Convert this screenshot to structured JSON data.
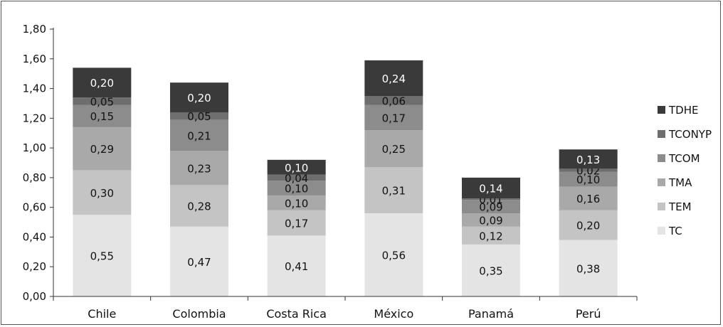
{
  "chart_data": {
    "type": "bar",
    "stacked": true,
    "categories": [
      "Chile",
      "Colombia",
      "Costa Rica",
      "México",
      "Panamá",
      "Perú"
    ],
    "series": [
      {
        "name": "TC",
        "color": "#e4e4e4",
        "label_color": "#111111",
        "values": [
          0.55,
          0.47,
          0.41,
          0.56,
          0.35,
          0.38
        ],
        "labels": [
          "0,55",
          "0,47",
          "0,41",
          "0,56",
          "0,35",
          "0,38"
        ]
      },
      {
        "name": "TEM",
        "color": "#c4c4c4",
        "label_color": "#111111",
        "values": [
          0.3,
          0.28,
          0.17,
          0.31,
          0.12,
          0.2
        ],
        "labels": [
          "0,30",
          "0,28",
          "0,17",
          "0,31",
          "0,12",
          "0,20"
        ]
      },
      {
        "name": "TMA",
        "color": "#a9a9a9",
        "label_color": "#111111",
        "values": [
          0.29,
          0.23,
          0.1,
          0.25,
          0.09,
          0.16
        ],
        "labels": [
          "0,29",
          "0,23",
          "0,10",
          "0,25",
          "0,09",
          "0,16"
        ]
      },
      {
        "name": "TCOM",
        "color": "#8c8c8c",
        "label_color": "#111111",
        "values": [
          0.15,
          0.21,
          0.1,
          0.17,
          0.09,
          0.1
        ],
        "labels": [
          "0,15",
          "0,21",
          "0,10",
          "0,17",
          "0,09",
          "0,10"
        ]
      },
      {
        "name": "TCONYP",
        "color": "#6e6e6e",
        "label_color": "#111111",
        "values": [
          0.05,
          0.05,
          0.04,
          0.06,
          0.01,
          0.02
        ],
        "labels": [
          "0,05",
          "0,05",
          "0,04",
          "0,06",
          "0,01",
          "0,02"
        ]
      },
      {
        "name": "TDHE",
        "color": "#3a3a3a",
        "label_color": "#ffffff",
        "values": [
          0.2,
          0.2,
          0.1,
          0.24,
          0.14,
          0.13
        ],
        "labels": [
          "0,20",
          "0,20",
          "0,10",
          "0,24",
          "0,14",
          "0,13"
        ]
      }
    ],
    "legend_order": [
      "TDHE",
      "TCONYP",
      "TCOM",
      "TMA",
      "TEM",
      "TC"
    ],
    "yticks": [
      0,
      0.2,
      0.4,
      0.6,
      0.8,
      1.0,
      1.2,
      1.4,
      1.6,
      1.8
    ],
    "ytick_labels": [
      "0,00",
      "0,20",
      "0,40",
      "0,60",
      "0,80",
      "1,00",
      "1,20",
      "1,40",
      "1,60",
      "1,80"
    ],
    "ylim": [
      0,
      1.8
    ],
    "grid": false,
    "legend_position": "right"
  }
}
